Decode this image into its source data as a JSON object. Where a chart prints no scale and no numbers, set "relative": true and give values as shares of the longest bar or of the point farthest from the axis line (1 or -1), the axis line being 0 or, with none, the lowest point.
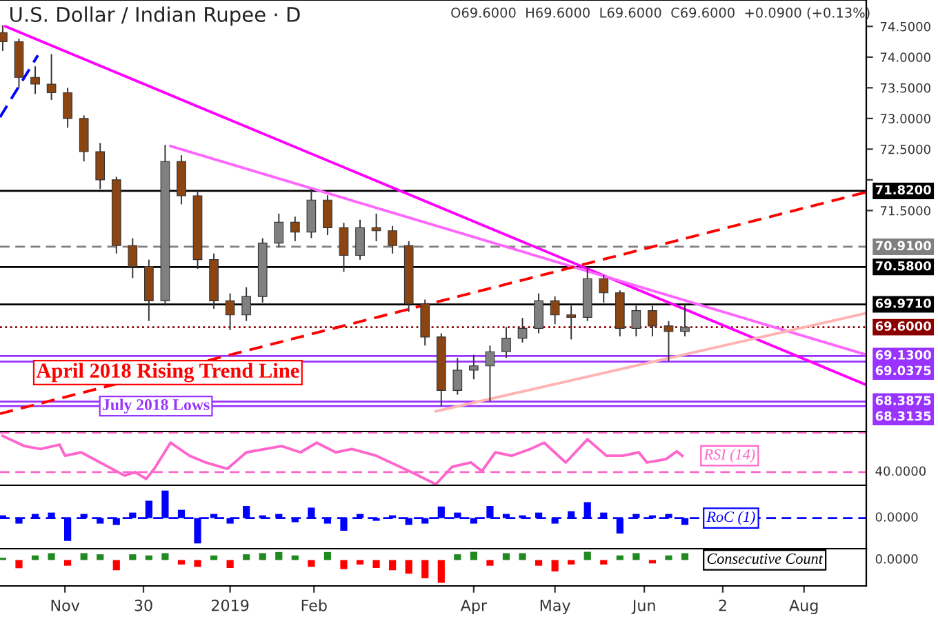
{
  "chart_data": [
    {
      "type": "candlestick",
      "title": "U.S. Dollar / Indian Rupee · D",
      "subtitle": "O69.6000  H69.6000  L69.6000  C69.6000  +0.0900 (+0.13%)",
      "x": [
        "2018-10-09",
        "2018-10-15",
        "2018-10-21",
        "2018-10-27",
        "2018-11-02",
        "2018-11-08",
        "2018-11-14",
        "2018-11-20",
        "2018-11-26",
        "2018-12-02",
        "2018-12-08",
        "2018-12-14",
        "2018-12-20",
        "2018-12-26",
        "2019-01-01",
        "2019-01-07",
        "2019-01-13",
        "2019-01-19",
        "2019-01-25",
        "2019-01-31",
        "2019-02-06",
        "2019-02-12",
        "2019-02-18",
        "2019-02-24",
        "2019-03-02",
        "2019-03-08",
        "2019-03-14",
        "2019-03-20",
        "2019-03-26",
        "2019-04-01",
        "2019-04-07",
        "2019-04-13",
        "2019-04-19",
        "2019-04-25",
        "2019-05-01",
        "2019-05-07",
        "2019-05-13",
        "2019-05-19",
        "2019-05-25",
        "2019-05-31",
        "2019-06-06",
        "2019-06-12",
        "2019-06-18"
      ],
      "ohlc": [
        [
          74.4,
          74.52,
          74.1,
          74.25
        ],
        [
          74.25,
          74.3,
          73.5,
          73.67
        ],
        [
          73.67,
          73.85,
          73.4,
          73.56
        ],
        [
          73.56,
          74.05,
          73.3,
          73.42
        ],
        [
          73.42,
          73.5,
          72.85,
          73.0
        ],
        [
          73.0,
          73.05,
          72.3,
          72.46
        ],
        [
          72.46,
          72.6,
          71.85,
          72.0
        ],
        [
          72.0,
          72.05,
          70.8,
          70.93
        ],
        [
          70.93,
          71.05,
          70.4,
          70.59
        ],
        [
          70.59,
          70.7,
          69.7,
          70.03
        ],
        [
          70.03,
          72.57,
          69.95,
          72.3
        ],
        [
          72.3,
          72.4,
          71.6,
          71.74
        ],
        [
          71.74,
          71.8,
          70.55,
          70.7
        ],
        [
          70.7,
          70.8,
          69.9,
          70.03
        ],
        [
          70.03,
          70.15,
          69.55,
          69.8
        ],
        [
          69.8,
          70.25,
          69.7,
          70.1
        ],
        [
          70.1,
          71.05,
          70.0,
          70.97
        ],
        [
          70.97,
          71.45,
          70.9,
          71.31
        ],
        [
          71.31,
          71.4,
          71.0,
          71.15
        ],
        [
          71.15,
          71.85,
          71.05,
          71.67
        ],
        [
          71.67,
          71.75,
          71.1,
          71.22
        ],
        [
          71.22,
          71.3,
          70.5,
          70.77
        ],
        [
          70.77,
          71.35,
          70.7,
          71.22
        ],
        [
          71.22,
          71.45,
          71.0,
          71.17
        ],
        [
          71.17,
          71.25,
          70.8,
          70.93
        ],
        [
          70.93,
          71.0,
          69.85,
          69.98
        ],
        [
          69.98,
          70.05,
          69.3,
          69.44
        ],
        [
          69.44,
          69.5,
          68.31,
          68.57
        ],
        [
          68.57,
          69.1,
          68.5,
          68.9
        ],
        [
          68.9,
          69.15,
          68.75,
          68.97
        ],
        [
          68.97,
          69.3,
          68.39,
          69.2
        ],
        [
          69.2,
          69.6,
          69.1,
          69.42
        ],
        [
          69.42,
          69.75,
          69.35,
          69.58
        ],
        [
          69.58,
          70.15,
          69.5,
          70.03
        ],
        [
          70.03,
          70.1,
          69.65,
          69.8
        ],
        [
          69.8,
          69.95,
          69.4,
          69.76
        ],
        [
          69.76,
          70.58,
          69.7,
          70.39
        ],
        [
          70.39,
          70.45,
          70.0,
          70.16
        ],
        [
          70.16,
          70.2,
          69.45,
          69.58
        ],
        [
          69.58,
          69.95,
          69.45,
          69.87
        ],
        [
          69.87,
          69.95,
          69.45,
          69.62
        ],
        [
          69.62,
          69.7,
          69.04,
          69.53
        ],
        [
          69.53,
          69.97,
          69.45,
          69.6
        ]
      ],
      "colors": [
        "#8b4513",
        "#8b4513",
        "#8b4513",
        "#8b4513",
        "#8b4513",
        "#8b4513",
        "#8b4513",
        "#8b4513",
        "#8b4513",
        "#8b4513",
        "#808080",
        "#8b4513",
        "#8b4513",
        "#8b4513",
        "#8b4513",
        "#808080",
        "#808080",
        "#808080",
        "#8b4513",
        "#808080",
        "#8b4513",
        "#8b4513",
        "#808080",
        "#8b4513",
        "#8b4513",
        "#8b4513",
        "#8b4513",
        "#8b4513",
        "#808080",
        "#808080",
        "#808080",
        "#808080",
        "#808080",
        "#808080",
        "#8b4513",
        "#8b4513",
        "#808080",
        "#8b4513",
        "#8b4513",
        "#808080",
        "#8b4513",
        "#8b4513",
        "#808080"
      ],
      "series": [
        {
          "type": "line",
          "color": "#ff00ff",
          "line_style": "solid",
          "x": [
            "2018-10-10",
            "2019-08-24"
          ],
          "values": [
            74.5,
            68.66
          ]
        },
        {
          "type": "line",
          "color": "#ff66ff",
          "line_style": "solid",
          "x": [
            "2018-12-10",
            "2019-08-24"
          ],
          "values": [
            72.55,
            69.15
          ]
        },
        {
          "type": "line",
          "color": "#ff0000",
          "line_style": "dashed",
          "x": [
            "2018-10-08",
            "2019-08-24"
          ],
          "values": [
            68.19,
            71.8
          ]
        },
        {
          "type": "line",
          "color": "#0000ff",
          "line_style": "dashed",
          "x": [
            "2018-10-08",
            "2018-10-22"
          ],
          "values": [
            73.02,
            74.03
          ]
        },
        {
          "type": "line",
          "color": "#ffb3b3",
          "line_style": "solid",
          "x": [
            "2019-03-18",
            "2019-08-24"
          ],
          "values": [
            68.23,
            69.83
          ]
        }
      ],
      "ref_lines": [
        {
          "axis": "y",
          "value": 71.82,
          "label": "71.8200",
          "color": "#000000",
          "line_style": "solid"
        },
        {
          "axis": "y",
          "value": 70.91,
          "label": "70.9100",
          "color": "#808080",
          "line_style": "dashed"
        },
        {
          "axis": "y",
          "value": 70.58,
          "label": "70.5800",
          "color": "#000000",
          "line_style": "solid"
        },
        {
          "axis": "y",
          "value": 69.971,
          "label": "69.9710",
          "color": "#000000",
          "line_style": "solid"
        },
        {
          "axis": "y",
          "value": 69.6,
          "label": "69.6000",
          "color": "#8b0000",
          "line_style": "dotted"
        },
        {
          "axis": "y",
          "value": 69.13,
          "label": "69.1300",
          "color": "#9933ff",
          "line_style": "solid"
        },
        {
          "axis": "y",
          "value": 69.0375,
          "label": "69.0375",
          "color": "#9933ff",
          "line_style": "solid"
        },
        {
          "axis": "y",
          "value": 68.3875,
          "label": "68.3875",
          "color": "#9933ff",
          "line_style": "solid"
        },
        {
          "axis": "y",
          "value": 68.3135,
          "label": "68.3135",
          "color": "#9933ff",
          "line_style": "solid"
        }
      ],
      "annotations": [
        {
          "text": "April 2018 Rising Trend Line",
          "x": "2018-12-09",
          "y": 68.86
        },
        "July 2018 Lows"
      ],
      "xlim": [
        "2018-10-08",
        "2019-08-24"
      ],
      "ylim": [
        67.9,
        74.93
      ],
      "yticks": [
        {
          "value": 72.0,
          "label": null
        },
        {
          "value": 72.5,
          "label": "72.5000"
        },
        {
          "value": 73.0,
          "label": "73.0000"
        },
        {
          "value": 73.5,
          "label": "73.5000"
        },
        {
          "value": 74.0,
          "label": "74.0000"
        },
        {
          "value": 74.5,
          "label": "74.5000"
        },
        {
          "value": 71.5,
          "label": "71.5000"
        }
      ],
      "tick_labels": "y"
    },
    {
      "type": "line",
      "relative": true,
      "xlim": [
        "2018-10-08",
        "2019-08-24"
      ],
      "tick_labels": false,
      "series": [
        {
          "name": "RSI (14)",
          "color": "#ff66cc",
          "x": [
            "2018-10-09",
            "2018-10-17",
            "2018-10-23",
            "2018-10-30",
            "2018-11-01",
            "2018-11-07",
            "2018-11-14",
            "2018-11-23",
            "2018-11-27",
            "2018-12-01",
            "2018-12-04",
            "2018-12-10",
            "2018-12-17",
            "2018-12-23",
            "2018-12-31",
            "2019-01-07",
            "2019-01-20",
            "2019-01-27",
            "2019-02-02",
            "2019-02-09",
            "2019-02-15",
            "2019-02-24",
            "2019-03-09",
            "2019-03-18",
            "2019-03-24",
            "2019-03-31",
            "2019-04-04",
            "2019-04-09",
            "2019-04-15",
            "2019-04-22",
            "2019-04-27",
            "2019-05-05",
            "2019-05-13",
            "2019-05-20",
            "2019-05-26",
            "2019-06-01",
            "2019-06-04",
            "2019-06-11",
            "2019-06-15",
            "2019-06-17"
          ],
          "values": [
            1.0,
            0.79,
            0.73,
            0.82,
            0.59,
            0.66,
            0.45,
            0.18,
            0.25,
            0.11,
            0.32,
            0.86,
            0.59,
            0.45,
            0.32,
            0.66,
            0.79,
            0.66,
            0.86,
            0.66,
            0.73,
            0.59,
            0.25,
            0.0,
            0.36,
            0.45,
            0.27,
            0.66,
            0.59,
            0.73,
            0.86,
            0.45,
            0.93,
            0.59,
            0.59,
            0.66,
            0.45,
            0.52,
            0.68,
            0.59
          ]
        }
      ],
      "ref_lines": [
        {
          "axis": "y",
          "value": 1.07,
          "color": "#ff66cc",
          "line_style": "dashed"
        },
        {
          "axis": "y",
          "value": 0.25,
          "color": "#ff66cc",
          "line_style": "dashed"
        }
      ],
      "annotations": [
        "40.0000"
      ]
    },
    {
      "type": "bar",
      "relative": true,
      "xlim": [
        "2018-10-08",
        "2019-08-24"
      ],
      "tick_labels": false,
      "x": [
        "2018-10-09",
        "2018-10-15",
        "2018-10-21",
        "2018-10-27",
        "2018-11-02",
        "2018-11-08",
        "2018-11-14",
        "2018-11-20",
        "2018-11-26",
        "2018-12-02",
        "2018-12-08",
        "2018-12-14",
        "2018-12-20",
        "2018-12-26",
        "2019-01-01",
        "2019-01-07",
        "2019-01-13",
        "2019-01-19",
        "2019-01-25",
        "2019-01-31",
        "2019-02-06",
        "2019-02-12",
        "2019-02-18",
        "2019-02-24",
        "2019-03-02",
        "2019-03-08",
        "2019-03-14",
        "2019-03-20",
        "2019-03-26",
        "2019-04-01",
        "2019-04-07",
        "2019-04-13",
        "2019-04-19",
        "2019-04-25",
        "2019-05-01",
        "2019-05-07",
        "2019-05-13",
        "2019-05-19",
        "2019-05-25",
        "2019-05-31",
        "2019-06-06",
        "2019-06-12",
        "2019-06-18"
      ],
      "series": [
        {
          "name": "RoC (1)",
          "color": "#0000ff",
          "values": [
            0.1,
            -0.2,
            0.15,
            0.2,
            -0.83,
            0.15,
            -0.2,
            -0.25,
            0.2,
            0.63,
            1.0,
            0.3,
            -0.92,
            0.15,
            -0.2,
            0.44,
            0.1,
            0.15,
            -0.15,
            0.38,
            -0.2,
            -0.46,
            0.15,
            -0.1,
            0.1,
            -0.25,
            -0.2,
            0.42,
            0.2,
            -0.2,
            0.44,
            0.15,
            0.1,
            0.2,
            -0.2,
            0.25,
            0.58,
            0.2,
            -0.56,
            0.15,
            0.1,
            0.15,
            -0.25
          ]
        }
      ],
      "ref_lines": [
        {
          "axis": "y",
          "value": 0,
          "color": "#0000ff",
          "line_style": "dashed"
        }
      ],
      "annotations": [
        "0.0000"
      ]
    },
    {
      "type": "bar",
      "relative": true,
      "xlim": [
        "2018-10-08",
        "2019-08-24"
      ],
      "tick_labels": "x",
      "x": [
        "2018-10-09",
        "2018-10-15",
        "2018-10-21",
        "2018-10-27",
        "2018-11-02",
        "2018-11-08",
        "2018-11-14",
        "2018-11-20",
        "2018-11-26",
        "2018-12-02",
        "2018-12-08",
        "2018-12-14",
        "2018-12-20",
        "2018-12-26",
        "2019-01-01",
        "2019-01-07",
        "2019-01-13",
        "2019-01-19",
        "2019-01-25",
        "2019-01-31",
        "2019-02-06",
        "2019-02-12",
        "2019-02-18",
        "2019-02-24",
        "2019-03-02",
        "2019-03-08",
        "2019-03-14",
        "2019-03-20",
        "2019-03-26",
        "2019-04-01",
        "2019-04-07",
        "2019-04-13",
        "2019-04-19",
        "2019-04-25",
        "2019-05-01",
        "2019-05-07",
        "2019-05-13",
        "2019-05-19",
        "2019-05-25",
        "2019-05-31",
        "2019-06-06",
        "2019-06-12",
        "2019-06-18"
      ],
      "series": [
        {
          "name": "Consecutive Count",
          "values": [
            0.1,
            -0.36,
            0.2,
            0.3,
            -0.25,
            0.3,
            0.25,
            -0.45,
            0.25,
            0.2,
            0.3,
            -0.2,
            -0.3,
            0.2,
            -0.35,
            0.25,
            0.3,
            0.35,
            0.2,
            -0.3,
            0.35,
            -0.4,
            -0.2,
            -0.35,
            -0.45,
            -0.6,
            -0.8,
            -1.0,
            0.25,
            0.36,
            -0.25,
            0.3,
            0.3,
            -0.25,
            -0.5,
            -0.2,
            0.36,
            -0.2,
            0.2,
            0.3,
            -0.15,
            0.2,
            0.3
          ],
          "colors": [
            "#1f8a1f",
            "#ff0000",
            "#1f8a1f",
            "#1f8a1f",
            "#ff0000",
            "#1f8a1f",
            "#1f8a1f",
            "#ff0000",
            "#1f8a1f",
            "#1f8a1f",
            "#1f8a1f",
            "#ff0000",
            "#ff0000",
            "#1f8a1f",
            "#ff0000",
            "#1f8a1f",
            "#1f8a1f",
            "#1f8a1f",
            "#1f8a1f",
            "#ff0000",
            "#1f8a1f",
            "#ff0000",
            "#ff0000",
            "#ff0000",
            "#ff0000",
            "#ff0000",
            "#ff0000",
            "#ff0000",
            "#1f8a1f",
            "#1f8a1f",
            "#ff0000",
            "#1f8a1f",
            "#1f8a1f",
            "#ff0000",
            "#ff0000",
            "#ff0000",
            "#1f8a1f",
            "#ff0000",
            "#1f8a1f",
            "#1f8a1f",
            "#ff0000",
            "#1f8a1f",
            "#1f8a1f"
          ]
        }
      ],
      "annotations": [
        "0.0000"
      ],
      "xticks": [
        {
          "value": "2018-11-01",
          "label": "Nov"
        },
        {
          "value": "2018-11-30",
          "label": "30"
        },
        {
          "value": "2019-01-01",
          "label": "2019"
        },
        {
          "value": "2019-02-01",
          "label": "Feb"
        },
        {
          "value": "2019-04-01",
          "label": "Apr"
        },
        {
          "value": "2019-05-01",
          "label": "May"
        },
        {
          "value": "2019-06-03",
          "label": "Jun"
        },
        {
          "value": "2019-07-02",
          "label": "2"
        },
        {
          "value": "2019-08-01",
          "label": "Aug"
        }
      ]
    }
  ]
}
